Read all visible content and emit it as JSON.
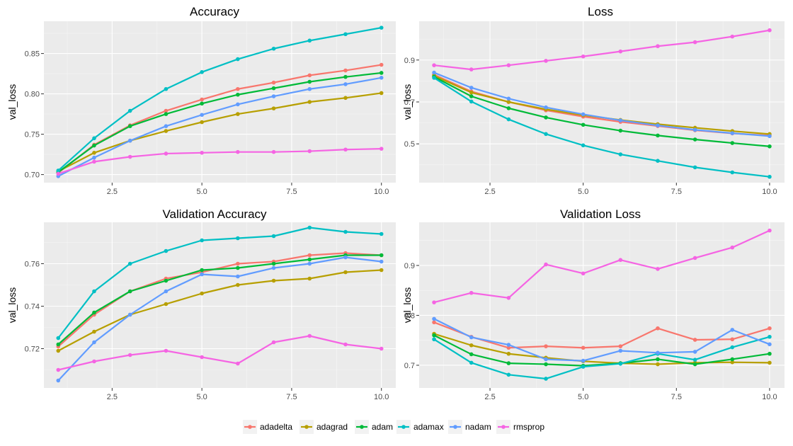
{
  "chart_data": [
    {
      "type": "line",
      "title": "Accuracy",
      "xlabel": "",
      "ylabel": "val_loss",
      "xlim": [
        0.6,
        10.4
      ],
      "ylim": [
        0.69,
        0.89
      ],
      "xticks": [
        2.5,
        5.0,
        7.5,
        10.0
      ],
      "xtick_labels": [
        "2.5",
        "5.0",
        "7.5",
        "10.0"
      ],
      "yticks": [
        0.7,
        0.75,
        0.8,
        0.85
      ],
      "ytick_labels": [
        "0.70",
        "0.75",
        "0.80",
        "0.85"
      ],
      "x": [
        1,
        2,
        3,
        4,
        5,
        6,
        7,
        8,
        9,
        10
      ],
      "series": [
        {
          "name": "adadelta",
          "color": "#F8766D",
          "values": [
            0.702,
            0.737,
            0.761,
            0.779,
            0.793,
            0.806,
            0.814,
            0.823,
            0.829,
            0.836
          ]
        },
        {
          "name": "adagrad",
          "color": "#B79F00",
          "values": [
            0.704,
            0.727,
            0.742,
            0.754,
            0.765,
            0.775,
            0.782,
            0.79,
            0.795,
            0.801
          ]
        },
        {
          "name": "adam",
          "color": "#00BA38",
          "values": [
            0.703,
            0.736,
            0.76,
            0.775,
            0.788,
            0.799,
            0.807,
            0.815,
            0.821,
            0.826
          ]
        },
        {
          "name": "adamax",
          "color": "#00BFC4",
          "values": [
            0.705,
            0.745,
            0.779,
            0.806,
            0.827,
            0.843,
            0.856,
            0.866,
            0.874,
            0.882
          ]
        },
        {
          "name": "nadam",
          "color": "#619CFF",
          "values": [
            0.698,
            0.721,
            0.742,
            0.76,
            0.774,
            0.787,
            0.797,
            0.806,
            0.812,
            0.82
          ]
        },
        {
          "name": "rmsprop",
          "color": "#F564E3",
          "values": [
            0.701,
            0.716,
            0.722,
            0.726,
            0.727,
            0.728,
            0.728,
            0.729,
            0.731,
            0.732
          ]
        }
      ]
    },
    {
      "type": "line",
      "title": "Loss",
      "xlabel": "",
      "ylabel": "val_loss",
      "xlim": [
        0.6,
        10.4
      ],
      "ylim": [
        0.315,
        1.085
      ],
      "xticks": [
        2.5,
        5.0,
        7.5,
        10.0
      ],
      "xtick_labels": [
        "2.5",
        "5.0",
        "7.5",
        "10.0"
      ],
      "yticks": [
        0.5,
        0.7,
        0.9
      ],
      "ytick_labels": [
        "0.5",
        "0.7",
        "0.9"
      ],
      "x": [
        1,
        2,
        3,
        4,
        5,
        6,
        7,
        8,
        9,
        10
      ],
      "series": [
        {
          "name": "adadelta",
          "color": "#F8766D",
          "values": [
            0.83,
            0.75,
            0.7,
            0.66,
            0.63,
            0.605,
            0.585,
            0.565,
            0.55,
            0.54
          ]
        },
        {
          "name": "adagrad",
          "color": "#B79F00",
          "values": [
            0.825,
            0.745,
            0.7,
            0.665,
            0.637,
            0.614,
            0.594,
            0.577,
            0.561,
            0.547
          ]
        },
        {
          "name": "adam",
          "color": "#00BA38",
          "values": [
            0.82,
            0.727,
            0.67,
            0.626,
            0.591,
            0.563,
            0.54,
            0.521,
            0.504,
            0.488
          ]
        },
        {
          "name": "adamax",
          "color": "#00BFC4",
          "values": [
            0.815,
            0.702,
            0.617,
            0.547,
            0.493,
            0.45,
            0.419,
            0.388,
            0.364,
            0.343
          ]
        },
        {
          "name": "nadam",
          "color": "#619CFF",
          "values": [
            0.84,
            0.768,
            0.716,
            0.674,
            0.641,
            0.612,
            0.588,
            0.567,
            0.551,
            0.537
          ]
        },
        {
          "name": "rmsprop",
          "color": "#F564E3",
          "values": [
            0.875,
            0.855,
            0.875,
            0.896,
            0.917,
            0.941,
            0.966,
            0.985,
            1.012,
            1.042
          ]
        }
      ]
    },
    {
      "type": "line",
      "title": "Validation Accuracy",
      "xlabel": "",
      "ylabel": "val_loss",
      "xlim": [
        0.6,
        10.4
      ],
      "ylim": [
        0.7015,
        0.7795
      ],
      "xticks": [
        2.5,
        5.0,
        7.5,
        10.0
      ],
      "xtick_labels": [
        "2.5",
        "5.0",
        "7.5",
        "10.0"
      ],
      "yticks": [
        0.72,
        0.74,
        0.76
      ],
      "ytick_labels": [
        "0.72",
        "0.74",
        "0.76"
      ],
      "x": [
        1,
        2,
        3,
        4,
        5,
        6,
        7,
        8,
        9,
        10
      ],
      "series": [
        {
          "name": "adadelta",
          "color": "#F8766D",
          "values": [
            0.721,
            0.736,
            0.747,
            0.753,
            0.756,
            0.76,
            0.761,
            0.764,
            0.765,
            0.764
          ]
        },
        {
          "name": "adagrad",
          "color": "#B79F00",
          "values": [
            0.719,
            0.728,
            0.736,
            0.741,
            0.746,
            0.75,
            0.752,
            0.753,
            0.756,
            0.757
          ]
        },
        {
          "name": "adam",
          "color": "#00BA38",
          "values": [
            0.722,
            0.737,
            0.747,
            0.752,
            0.757,
            0.758,
            0.76,
            0.762,
            0.764,
            0.764
          ]
        },
        {
          "name": "adamax",
          "color": "#00BFC4",
          "values": [
            0.725,
            0.747,
            0.76,
            0.766,
            0.771,
            0.772,
            0.773,
            0.777,
            0.775,
            0.774
          ]
        },
        {
          "name": "nadam",
          "color": "#619CFF",
          "values": [
            0.705,
            0.723,
            0.736,
            0.747,
            0.755,
            0.754,
            0.758,
            0.76,
            0.763,
            0.761
          ]
        },
        {
          "name": "rmsprop",
          "color": "#F564E3",
          "values": [
            0.71,
            0.714,
            0.717,
            0.719,
            0.716,
            0.713,
            0.723,
            0.726,
            0.722,
            0.72
          ]
        }
      ]
    },
    {
      "type": "line",
      "title": "Validation Loss",
      "xlabel": "",
      "ylabel": "val_loss",
      "xlim": [
        0.6,
        10.4
      ],
      "ylim": [
        0.6545,
        0.9865
      ],
      "xticks": [
        2.5,
        5.0,
        7.5,
        10.0
      ],
      "xtick_labels": [
        "2.5",
        "5.0",
        "7.5",
        "10.0"
      ],
      "yticks": [
        0.7,
        0.8,
        0.9
      ],
      "ytick_labels": [
        "0.7",
        "0.8",
        "0.9"
      ],
      "x": [
        1,
        2,
        3,
        4,
        5,
        6,
        7,
        8,
        9,
        10
      ],
      "series": [
        {
          "name": "adadelta",
          "color": "#F8766D",
          "values": [
            0.786,
            0.757,
            0.735,
            0.738,
            0.735,
            0.738,
            0.774,
            0.751,
            0.752,
            0.774
          ]
        },
        {
          "name": "adagrad",
          "color": "#B79F00",
          "values": [
            0.763,
            0.74,
            0.723,
            0.715,
            0.708,
            0.704,
            0.702,
            0.705,
            0.706,
            0.705
          ]
        },
        {
          "name": "adam",
          "color": "#00BA38",
          "values": [
            0.76,
            0.722,
            0.704,
            0.702,
            0.699,
            0.704,
            0.712,
            0.702,
            0.712,
            0.723
          ]
        },
        {
          "name": "adamax",
          "color": "#00BFC4",
          "values": [
            0.752,
            0.705,
            0.681,
            0.673,
            0.697,
            0.703,
            0.723,
            0.711,
            0.736,
            0.757
          ]
        },
        {
          "name": "nadam",
          "color": "#619CFF",
          "values": [
            0.793,
            0.756,
            0.741,
            0.712,
            0.709,
            0.729,
            0.725,
            0.727,
            0.771,
            0.742
          ]
        },
        {
          "name": "rmsprop",
          "color": "#F564E3",
          "values": [
            0.826,
            0.845,
            0.835,
            0.902,
            0.884,
            0.911,
            0.893,
            0.915,
            0.936,
            0.97
          ]
        }
      ]
    }
  ],
  "legend": {
    "placement": "bottom",
    "items": [
      {
        "label": "adadelta",
        "color": "#F8766D"
      },
      {
        "label": "adagrad",
        "color": "#B79F00"
      },
      {
        "label": "adam",
        "color": "#00BA38"
      },
      {
        "label": "adamax",
        "color": "#00BFC4"
      },
      {
        "label": "nadam",
        "color": "#619CFF"
      },
      {
        "label": "rmsprop",
        "color": "#F564E3"
      }
    ]
  }
}
